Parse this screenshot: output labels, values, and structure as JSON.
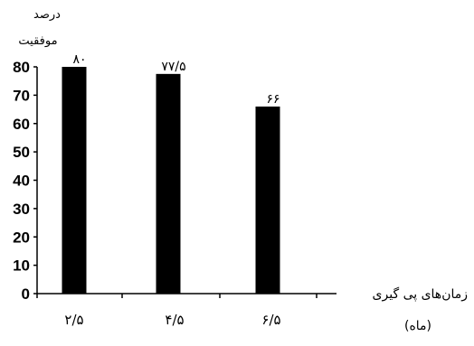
{
  "chart_data": {
    "type": "bar",
    "ylabel_line1": "درصد",
    "ylabel_line2": "موفقیت",
    "xlabel_line1": "زمان‌های پی گیری",
    "xlabel_line2": "(ماه)",
    "categories": [
      "۲/۵",
      "۴/۵",
      "۶/۵"
    ],
    "values": [
      80,
      77.5,
      66
    ],
    "data_labels": [
      "۸۰",
      "۷۷/۵",
      "۶۶"
    ],
    "y_ticks": [
      "0",
      "10",
      "20",
      "30",
      "40",
      "50",
      "60",
      "70",
      "80"
    ],
    "ylim": [
      0,
      80
    ],
    "grid": false,
    "bar_color": "#000000"
  }
}
